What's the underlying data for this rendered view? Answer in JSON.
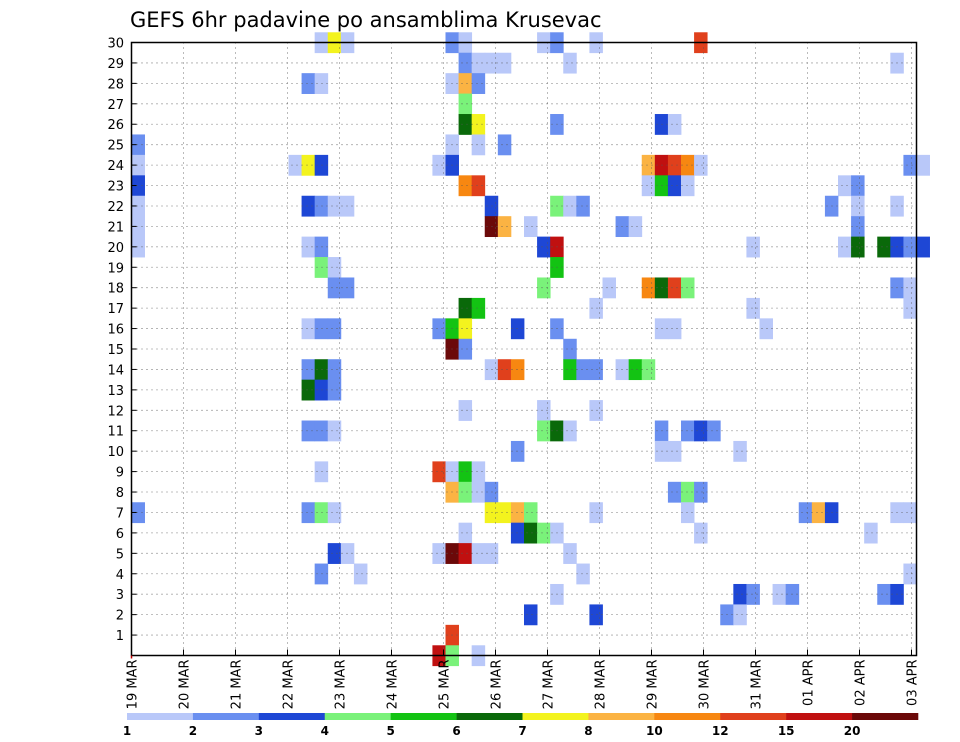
{
  "chart_data": {
    "type": "heatmap",
    "title": "GEFS 6hr padavine po ansamblima Krusevac",
    "xlabel": "",
    "ylabel": "",
    "x_tick_labels": [
      "19 MAR",
      "20 MAR",
      "21 MAR",
      "22 MAR",
      "23 MAR",
      "24 MAR",
      "25 MAR",
      "26 MAR",
      "27 MAR",
      "28 MAR",
      "29 MAR",
      "30 MAR",
      "31 MAR",
      "01 APR",
      "02 APR",
      "03 APR"
    ],
    "y_tick_labels": [
      "1",
      "2",
      "3",
      "4",
      "5",
      "6",
      "7",
      "8",
      "9",
      "10",
      "11",
      "12",
      "13",
      "14",
      "15",
      "16",
      "17",
      "18",
      "19",
      "20",
      "21",
      "22",
      "23",
      "24",
      "25",
      "26",
      "27",
      "28",
      "29",
      "30"
    ],
    "x_range_steps": [
      0,
      60
    ],
    "x_step_hours": 6,
    "y_range_members": [
      0,
      30
    ],
    "grid": true,
    "color_levels": [
      "1",
      "2",
      "3",
      "4",
      "5",
      "6",
      "7",
      "8",
      "10",
      "12",
      "15",
      "20"
    ],
    "colors": [
      "#b9c8f9",
      "#6a8ff0",
      "#1e47d5",
      "#7af27a",
      "#13c313",
      "#0a690a",
      "#f3f31e",
      "#fbb343",
      "#f78711",
      "#e0401c",
      "#c01010",
      "#6b0909"
    ],
    "cells": [
      [
        30,
        14,
        0
      ],
      [
        30,
        15,
        6
      ],
      [
        30,
        16,
        0
      ],
      [
        30,
        24,
        1
      ],
      [
        30,
        25,
        0
      ],
      [
        30,
        31,
        0
      ],
      [
        30,
        32,
        1
      ],
      [
        30,
        35,
        0
      ],
      [
        30,
        43,
        9
      ],
      [
        29,
        25,
        1
      ],
      [
        29,
        26,
        0
      ],
      [
        29,
        27,
        0
      ],
      [
        29,
        28,
        0
      ],
      [
        29,
        33,
        0
      ],
      [
        29,
        58,
        0
      ],
      [
        28,
        13,
        1
      ],
      [
        28,
        14,
        0
      ],
      [
        28,
        24,
        0
      ],
      [
        28,
        25,
        7
      ],
      [
        28,
        26,
        1
      ],
      [
        27,
        25,
        3
      ],
      [
        26,
        25,
        5
      ],
      [
        26,
        26,
        6
      ],
      [
        26,
        32,
        1
      ],
      [
        26,
        40,
        2
      ],
      [
        26,
        41,
        0
      ],
      [
        25,
        0,
        1
      ],
      [
        25,
        24,
        0
      ],
      [
        25,
        26,
        0
      ],
      [
        25,
        28,
        1
      ],
      [
        24,
        0,
        0
      ],
      [
        24,
        12,
        0
      ],
      [
        24,
        13,
        6
      ],
      [
        24,
        14,
        2
      ],
      [
        24,
        23,
        0
      ],
      [
        24,
        24,
        2
      ],
      [
        24,
        39,
        7
      ],
      [
        24,
        40,
        10
      ],
      [
        24,
        41,
        9
      ],
      [
        24,
        42,
        8
      ],
      [
        24,
        43,
        0
      ],
      [
        24,
        59,
        1
      ],
      [
        24,
        60,
        0
      ],
      [
        23,
        0,
        2
      ],
      [
        23,
        25,
        8
      ],
      [
        23,
        26,
        9
      ],
      [
        23,
        39,
        0
      ],
      [
        23,
        40,
        4
      ],
      [
        23,
        41,
        2
      ],
      [
        23,
        42,
        0
      ],
      [
        23,
        54,
        0
      ],
      [
        23,
        55,
        1
      ],
      [
        22,
        0,
        0
      ],
      [
        22,
        13,
        2
      ],
      [
        22,
        14,
        1
      ],
      [
        22,
        15,
        0
      ],
      [
        22,
        16,
        0
      ],
      [
        22,
        27,
        2
      ],
      [
        22,
        32,
        3
      ],
      [
        22,
        33,
        0
      ],
      [
        22,
        34,
        1
      ],
      [
        22,
        53,
        1
      ],
      [
        22,
        55,
        0
      ],
      [
        22,
        58,
        0
      ],
      [
        21,
        0,
        0
      ],
      [
        21,
        27,
        11
      ],
      [
        21,
        28,
        7
      ],
      [
        21,
        30,
        0
      ],
      [
        21,
        37,
        1
      ],
      [
        21,
        38,
        0
      ],
      [
        21,
        55,
        1
      ],
      [
        20,
        0,
        0
      ],
      [
        20,
        13,
        0
      ],
      [
        20,
        14,
        1
      ],
      [
        20,
        31,
        2
      ],
      [
        20,
        32,
        10
      ],
      [
        20,
        47,
        0
      ],
      [
        20,
        54,
        0
      ],
      [
        20,
        55,
        5
      ],
      [
        20,
        57,
        5
      ],
      [
        20,
        58,
        2
      ],
      [
        20,
        59,
        1
      ],
      [
        20,
        60,
        2
      ],
      [
        19,
        14,
        3
      ],
      [
        19,
        15,
        0
      ],
      [
        19,
        32,
        4
      ],
      [
        18,
        15,
        1
      ],
      [
        18,
        16,
        1
      ],
      [
        18,
        31,
        3
      ],
      [
        18,
        36,
        0
      ],
      [
        18,
        39,
        8
      ],
      [
        18,
        40,
        5
      ],
      [
        18,
        41,
        9
      ],
      [
        18,
        42,
        3
      ],
      [
        18,
        58,
        1
      ],
      [
        18,
        59,
        0
      ],
      [
        17,
        25,
        5
      ],
      [
        17,
        26,
        4
      ],
      [
        17,
        35,
        0
      ],
      [
        17,
        47,
        0
      ],
      [
        17,
        59,
        0
      ],
      [
        16,
        13,
        0
      ],
      [
        16,
        14,
        1
      ],
      [
        16,
        15,
        1
      ],
      [
        16,
        23,
        1
      ],
      [
        16,
        24,
        4
      ],
      [
        16,
        25,
        6
      ],
      [
        16,
        29,
        2
      ],
      [
        16,
        32,
        1
      ],
      [
        16,
        40,
        0
      ],
      [
        16,
        41,
        0
      ],
      [
        16,
        48,
        0
      ],
      [
        15,
        24,
        11
      ],
      [
        15,
        25,
        1
      ],
      [
        15,
        33,
        1
      ],
      [
        14,
        13,
        1
      ],
      [
        14,
        14,
        5
      ],
      [
        14,
        15,
        1
      ],
      [
        14,
        27,
        0
      ],
      [
        14,
        28,
        9
      ],
      [
        14,
        29,
        8
      ],
      [
        14,
        33,
        4
      ],
      [
        14,
        34,
        1
      ],
      [
        14,
        35,
        1
      ],
      [
        14,
        37,
        0
      ],
      [
        14,
        38,
        4
      ],
      [
        14,
        39,
        3
      ],
      [
        13,
        13,
        5
      ],
      [
        13,
        14,
        2
      ],
      [
        13,
        15,
        1
      ],
      [
        12,
        25,
        0
      ],
      [
        12,
        31,
        0
      ],
      [
        12,
        35,
        0
      ],
      [
        11,
        13,
        1
      ],
      [
        11,
        14,
        1
      ],
      [
        11,
        15,
        0
      ],
      [
        11,
        31,
        3
      ],
      [
        11,
        32,
        5
      ],
      [
        11,
        33,
        0
      ],
      [
        11,
        40,
        1
      ],
      [
        11,
        42,
        1
      ],
      [
        11,
        43,
        2
      ],
      [
        11,
        44,
        1
      ],
      [
        10,
        29,
        1
      ],
      [
        10,
        40,
        0
      ],
      [
        10,
        41,
        0
      ],
      [
        10,
        46,
        0
      ],
      [
        9,
        14,
        0
      ],
      [
        9,
        23,
        9
      ],
      [
        9,
        24,
        0
      ],
      [
        9,
        25,
        4
      ],
      [
        9,
        26,
        0
      ],
      [
        8,
        24,
        7
      ],
      [
        8,
        25,
        3
      ],
      [
        8,
        26,
        0
      ],
      [
        8,
        27,
        1
      ],
      [
        8,
        41,
        1
      ],
      [
        8,
        42,
        3
      ],
      [
        8,
        43,
        1
      ],
      [
        7,
        0,
        1
      ],
      [
        7,
        13,
        1
      ],
      [
        7,
        14,
        3
      ],
      [
        7,
        15,
        0
      ],
      [
        7,
        27,
        6
      ],
      [
        7,
        28,
        6
      ],
      [
        7,
        29,
        7
      ],
      [
        7,
        30,
        3
      ],
      [
        7,
        35,
        0
      ],
      [
        7,
        42,
        0
      ],
      [
        7,
        51,
        1
      ],
      [
        7,
        52,
        7
      ],
      [
        7,
        53,
        2
      ],
      [
        7,
        58,
        0
      ],
      [
        7,
        59,
        0
      ],
      [
        6,
        25,
        0
      ],
      [
        6,
        29,
        2
      ],
      [
        6,
        30,
        5
      ],
      [
        6,
        31,
        3
      ],
      [
        6,
        32,
        0
      ],
      [
        6,
        43,
        0
      ],
      [
        6,
        56,
        0
      ],
      [
        5,
        15,
        2
      ],
      [
        5,
        16,
        0
      ],
      [
        5,
        23,
        0
      ],
      [
        5,
        24,
        11
      ],
      [
        5,
        25,
        10
      ],
      [
        5,
        26,
        0
      ],
      [
        5,
        27,
        0
      ],
      [
        5,
        33,
        0
      ],
      [
        4,
        14,
        1
      ],
      [
        4,
        17,
        0
      ],
      [
        4,
        34,
        0
      ],
      [
        4,
        59,
        0
      ],
      [
        3,
        32,
        0
      ],
      [
        3,
        46,
        2
      ],
      [
        3,
        47,
        1
      ],
      [
        3,
        49,
        0
      ],
      [
        3,
        50,
        1
      ],
      [
        3,
        57,
        1
      ],
      [
        3,
        58,
        2
      ],
      [
        2,
        30,
        2
      ],
      [
        2,
        35,
        2
      ],
      [
        2,
        45,
        1
      ],
      [
        2,
        46,
        0
      ],
      [
        1,
        24,
        9
      ],
      [
        0,
        23,
        10
      ],
      [
        0,
        24,
        3
      ],
      [
        0,
        26,
        0
      ]
    ]
  }
}
